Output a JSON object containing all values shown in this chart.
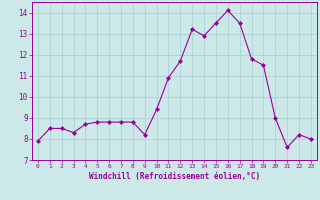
{
  "x": [
    0,
    1,
    2,
    3,
    4,
    5,
    6,
    7,
    8,
    9,
    10,
    11,
    12,
    13,
    14,
    15,
    16,
    17,
    18,
    19,
    20,
    21,
    22,
    23
  ],
  "y": [
    7.9,
    8.5,
    8.5,
    8.3,
    8.7,
    8.8,
    8.8,
    8.8,
    8.8,
    8.2,
    9.4,
    10.9,
    11.7,
    13.2,
    12.9,
    13.5,
    14.1,
    13.5,
    11.8,
    11.5,
    9.0,
    7.6,
    8.2,
    8.0
  ],
  "line_color": "#990099",
  "marker": "D",
  "marker_size": 2.0,
  "bg_color": "#cce8e8",
  "grid_color": "#aad4d4",
  "axis_color": "#990099",
  "tick_color": "#990099",
  "xlabel": "Windchill (Refroidissement éolien,°C)",
  "xlim": [
    -0.5,
    23.5
  ],
  "ylim": [
    7,
    14.5
  ],
  "yticks": [
    7,
    8,
    9,
    10,
    11,
    12,
    13,
    14
  ],
  "xticks": [
    0,
    1,
    2,
    3,
    4,
    5,
    6,
    7,
    8,
    9,
    10,
    11,
    12,
    13,
    14,
    15,
    16,
    17,
    18,
    19,
    20,
    21,
    22,
    23
  ]
}
